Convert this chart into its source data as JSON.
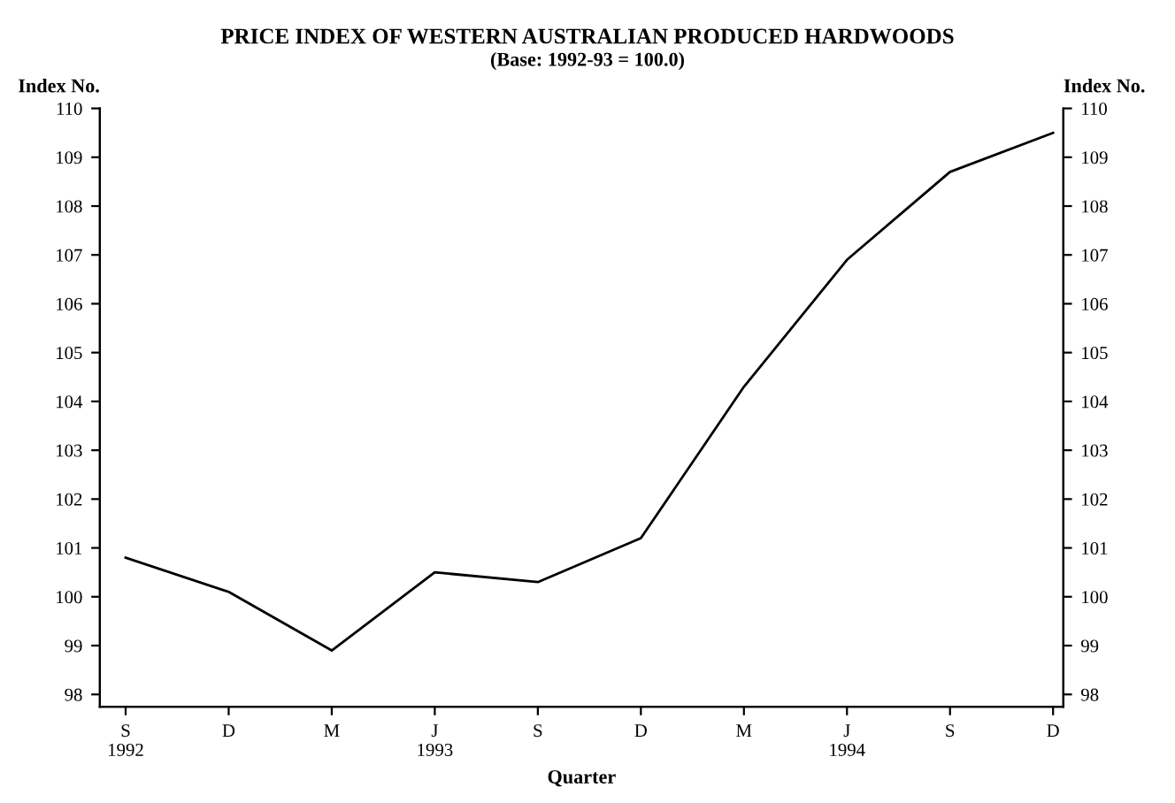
{
  "chart_data": {
    "type": "line",
    "title": "PRICE INDEX OF WESTERN AUSTRALIAN PRODUCED HARDWOODS",
    "subtitle": "(Base: 1992-93 = 100.0)",
    "xlabel": "Quarter",
    "ylabel": "Index No.",
    "y2label": "Index No.",
    "categories": [
      "S\n1992",
      "D",
      "M",
      "J\n1993",
      "S",
      "D",
      "M",
      "J\n1994",
      "S",
      "D"
    ],
    "series": [
      {
        "color": "#000000",
        "values": [
          100.8,
          100.1,
          98.9,
          100.5,
          100.3,
          101.2,
          104.3,
          106.9,
          108.7,
          109.5
        ]
      }
    ],
    "ylim": [
      97.75,
      110
    ],
    "yticks": [
      98,
      99,
      100,
      101,
      102,
      103,
      104,
      105,
      106,
      107,
      108,
      109,
      110
    ],
    "y2lim": [
      97.75,
      110
    ],
    "y2ticks": [
      98,
      99,
      100,
      101,
      102,
      103,
      104,
      105,
      106,
      107,
      108,
      109,
      110
    ],
    "grid": false,
    "marker": "none",
    "line_style": "solid"
  }
}
